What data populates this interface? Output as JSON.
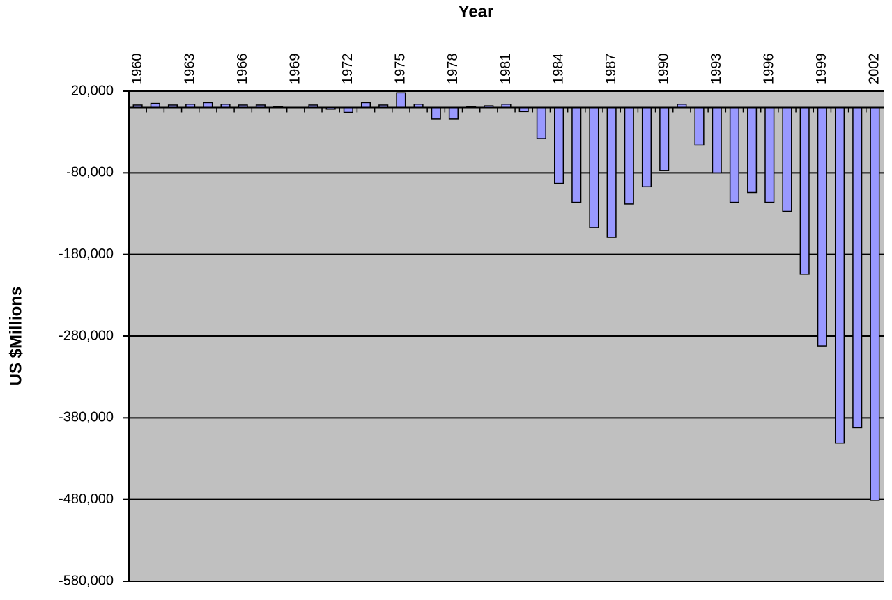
{
  "chart_data": {
    "type": "bar",
    "title": "Year",
    "y_label": "US $Millions",
    "categories": [
      "1960",
      null,
      null,
      "1963",
      null,
      null,
      "1966",
      null,
      null,
      "1969",
      null,
      null,
      "1972",
      null,
      null,
      "1975",
      null,
      null,
      "1978",
      null,
      null,
      "1981",
      null,
      null,
      "1984",
      null,
      null,
      "1987",
      null,
      null,
      "1990",
      null,
      null,
      "1993",
      null,
      null,
      "1996",
      null,
      null,
      "1999",
      null,
      null,
      "2002"
    ],
    "values": [
      3000,
      5000,
      3000,
      4000,
      6000,
      4000,
      3000,
      3000,
      1000,
      0,
      3000,
      -2000,
      -6000,
      6000,
      3000,
      18000,
      4000,
      -14000,
      -14000,
      1000,
      2000,
      4000,
      -5000,
      -38000,
      -93000,
      -116000,
      -147000,
      -159000,
      -118000,
      -97000,
      -77000,
      4000,
      -46000,
      -80000,
      -116000,
      -104000,
      -116000,
      -127000,
      -204000,
      -292000,
      -411000,
      -392000,
      -481000
    ],
    "color": "#9999ff",
    "ylim": [
      -580000,
      20000
    ],
    "yticks": [
      {
        "value": 20000,
        "label": "20,000"
      },
      {
        "value": -80000,
        "label": "-80,000"
      },
      {
        "value": -180000,
        "label": "-180,000"
      },
      {
        "value": -280000,
        "label": "-280,000"
      },
      {
        "value": -380000,
        "label": "-380,000"
      },
      {
        "value": -480000,
        "label": "-480,000"
      },
      {
        "value": -580000,
        "label": "-580,000"
      }
    ],
    "grid": true
  }
}
